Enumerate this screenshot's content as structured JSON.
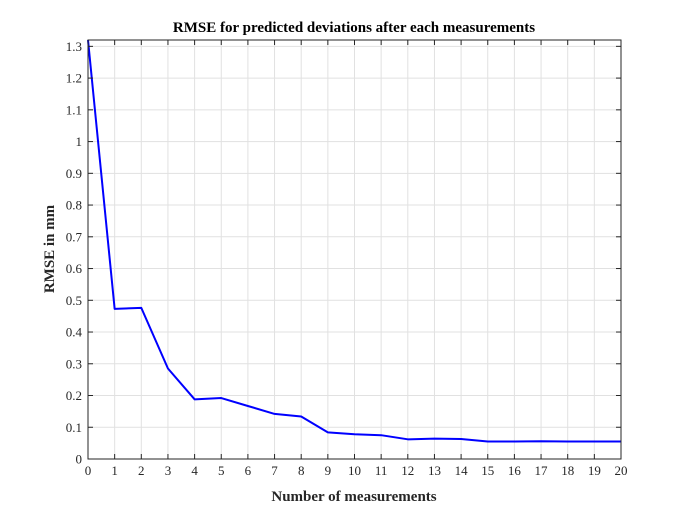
{
  "chart_data": {
    "type": "line",
    "title": "RMSE for predicted deviations after each measurements",
    "xlabel": "Number of measurements",
    "ylabel": "RMSE in mm",
    "xlim": [
      0,
      20
    ],
    "ylim": [
      0,
      1.32
    ],
    "xticks": [
      0,
      1,
      2,
      3,
      4,
      5,
      6,
      7,
      8,
      9,
      10,
      11,
      12,
      13,
      14,
      15,
      16,
      17,
      18,
      19,
      20
    ],
    "yticks": [
      0,
      0.1,
      0.2,
      0.3,
      0.4,
      0.5,
      0.6,
      0.7,
      0.8,
      0.9,
      1,
      1.1,
      1.2,
      1.3
    ],
    "grid": true,
    "series": [
      {
        "color": "#0000ff",
        "x": [
          0,
          1,
          2,
          3,
          4,
          5,
          6,
          7,
          8,
          9,
          10,
          11,
          12,
          13,
          14,
          15,
          16,
          17,
          18,
          19,
          20
        ],
        "values": [
          1.32,
          0.473,
          0.476,
          0.285,
          0.188,
          0.192,
          0.167,
          0.142,
          0.134,
          0.084,
          0.078,
          0.075,
          0.062,
          0.064,
          0.063,
          0.055,
          0.055,
          0.056,
          0.055,
          0.055,
          0.055
        ]
      }
    ]
  }
}
